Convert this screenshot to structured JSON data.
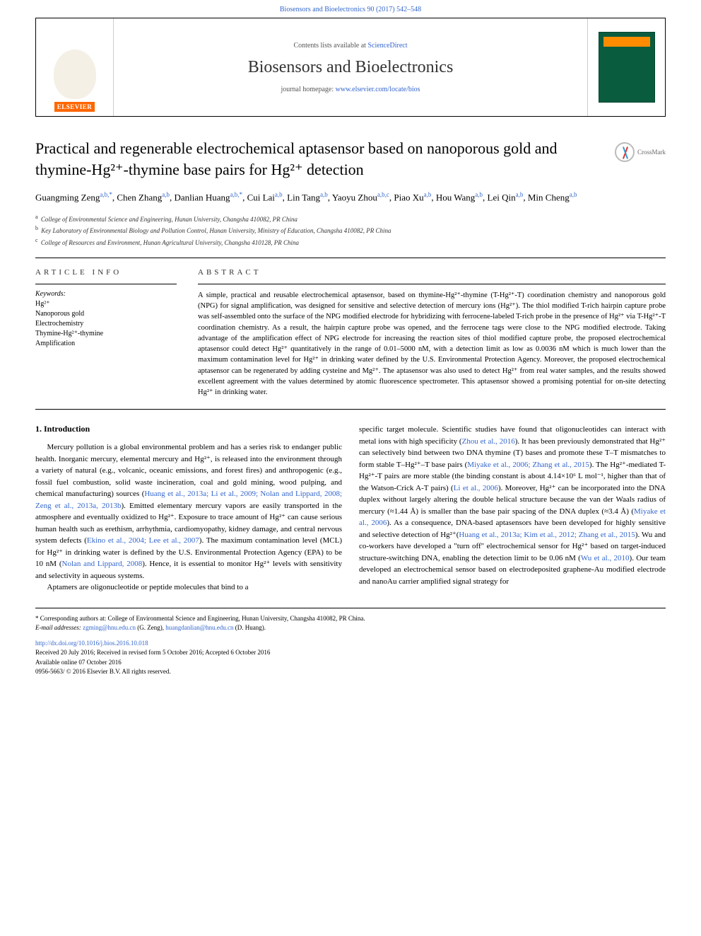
{
  "header": {
    "citation": "Biosensors and Bioelectronics 90 (2017) 542–548",
    "contents_prefix": "Contents lists available at ",
    "contents_link": "ScienceDirect",
    "journal_name": "Biosensors and Bioelectronics",
    "homepage_prefix": "journal homepage: ",
    "homepage_link": "www.elsevier.com/locate/bios",
    "publisher_logo": "ELSEVIER",
    "crossmark": "CrossMark"
  },
  "article": {
    "title_html": "Practical and regenerable electrochemical aptasensor based on nanoporous gold and thymine-Hg²⁺-thymine base pairs for Hg²⁺ detection",
    "authors_html": "Guangming Zeng<sup class=\"aff\">a,b,*</sup>, Chen Zhang<sup class=\"aff\">a,b</sup>, Danlian Huang<sup class=\"aff\">a,b,*</sup>, Cui Lai<sup class=\"aff\">a,b</sup>, Lin Tang<sup class=\"aff\">a,b</sup>, Yaoyu Zhou<sup class=\"aff\">a,b,c</sup>, Piao Xu<sup class=\"aff\">a,b</sup>, Hou Wang<sup class=\"aff\">a,b</sup>, Lei Qin<sup class=\"aff\">a,b</sup>, Min Cheng<sup class=\"aff\">a,b</sup>",
    "affiliations": [
      {
        "label": "a",
        "text": "College of Environmental Science and Engineering, Hunan University, Changsha 410082, PR China"
      },
      {
        "label": "b",
        "text": "Key Laboratory of Environmental Biology and Pollution Control, Hunan University, Ministry of Education, Changsha 410082, PR China"
      },
      {
        "label": "c",
        "text": "College of Resources and Environment, Hunan Agricultural University, Changsha 410128, PR China"
      }
    ]
  },
  "info": {
    "heading": "ARTICLE INFO",
    "keywords_label": "Keywords:",
    "keywords": [
      "Hg²⁺",
      "Nanoporous gold",
      "Electrochemistry",
      "Thymine-Hg²⁺-thymine",
      "Amplification"
    ]
  },
  "abstract": {
    "heading": "ABSTRACT",
    "text": "A simple, practical and reusable electrochemical aptasensor, based on thymine-Hg²⁺-thymine (T-Hg²⁺-T) coordination chemistry and nanoporous gold (NPG) for signal amplification, was designed for sensitive and selective detection of mercury ions (Hg²⁺). The thiol modified T-rich hairpin capture probe was self-assembled onto the surface of the NPG modified electrode for hybridizing with ferrocene-labeled T-rich probe in the presence of Hg²⁺ via T-Hg²⁺-T coordination chemistry. As a result, the hairpin capture probe was opened, and the ferrocene tags were close to the NPG modified electrode. Taking advantage of the amplification effect of NPG electrode for increasing the reaction sites of thiol modified capture probe, the proposed electrochemical aptasensor could detect Hg²⁺ quantitatively in the range of 0.01–5000 nM, with a detection limit as low as 0.0036 nM which is much lower than the maximum contamination level for Hg²⁺ in drinking water defined by the U.S. Environmental Protection Agency. Moreover, the proposed electrochemical aptasensor can be regenerated by adding cysteine and Mg²⁺. The aptasensor was also used to detect Hg²⁺ from real water samples, and the results showed excellent agreement with the values determined by atomic fluorescence spectrometer. This aptasensor showed a promising potential for on-site detecting Hg²⁺ in drinking water."
  },
  "body": {
    "heading": "1. Introduction",
    "col1_html": "<p>Mercury pollution is a global environmental problem and has a series risk to endanger public health. Inorganic mercury, elemental mercury and Hg²⁺, is released into the environment through a variety of natural (e.g., volcanic, oceanic emissions, and forest fires) and anthropogenic (e.g., fossil fuel combustion, solid waste incineration, coal and gold mining, wood pulping, and chemical manufacturing) sources (<span class=\"cite\">Huang et al., 2013a; Li et al., 2009; Nolan and Lippard, 2008; Zeng et al., 2013a, 2013b</span>). Emitted elementary mercury vapors are easily transported in the atmosphere and eventually oxidized to Hg²⁺. Exposure to trace amount of Hg²⁺ can cause serious human health such as erethism, arrhythmia, cardiomyopathy, kidney damage, and central nervous system defects (<span class=\"cite\">Ekino et al., 2004; Lee et al., 2007</span>). The maximum contamination level (MCL) for Hg²⁺ in drinking water is defined by the U.S. Environmental Protection Agency (EPA) to be 10 nM (<span class=\"cite\">Nolan and Lippard, 2008</span>). Hence, it is essential to monitor Hg²⁺ levels with sensitivity and selectivity in aqueous systems.</p><p>Aptamers are oligonucleotide or peptide molecules that bind to a</p>",
    "col2_html": "<p style=\"text-indent:0\">specific target molecule. Scientific studies have found that oligonucleotides can interact with metal ions with high specificity (<span class=\"cite\">Zhou et al., 2016</span>). It has been previously demonstrated that Hg²⁺ can selectively bind between two DNA thymine (T) bases and promote these T–T mismatches to form stable T–Hg²⁺–T base pairs (<span class=\"cite\">Miyake et al., 2006; Zhang et al., 2015</span>). The Hg²⁺-mediated T-Hg²⁺-T pairs are more stable (the binding constant is about 4.14×10⁶ L mol⁻¹, higher than that of the Watson-Crick A-T pairs) (<span class=\"cite\">Li et al., 2006</span>). Moreover, Hg²⁺ can be incorporated into the DNA duplex without largely altering the double helical structure because the van der Waals radius of mercury (≈1.44 Å) is smaller than the base pair spacing of the DNA duplex (≈3.4 Å) (<span class=\"cite\">Miyake et al., 2006</span>). As a consequence, DNA-based aptasensors have been developed for highly sensitive and selective detection of Hg²⁺(<span class=\"cite\">Huang et al., 2013a; Kim et al., 2012; Zhang et al., 2015</span>). Wu and co-workers have developed a \"turn off\" electrochemical sensor for Hg²⁺ based on target-induced structure-switching DNA, enabling the detection limit to be 0.06 nM (<span class=\"cite\">Wu et al., 2010</span>). Our team developed an electrochemical sensor based on electrodeposited graphene-Au modified electrode and nanoAu carrier amplified signal strategy for</p>"
  },
  "footer": {
    "corr": "* Corresponding authors at: College of Environmental Science and Engineering, Hunan University, Changsha 410082, PR China.",
    "emails_label": "E-mail addresses: ",
    "email1": "zgming@hnu.edu.cn",
    "email1_name": " (G. Zeng), ",
    "email2": "huangdanlian@hnu.edu.cn",
    "email2_name": " (D. Huang).",
    "doi": "http://dx.doi.org/10.1016/j.bios.2016.10.018",
    "received": "Received 20 July 2016; Received in revised form 5 October 2016; Accepted 6 October 2016",
    "available": "Available online 07 October 2016",
    "copyright": "0956-5663/ © 2016 Elsevier B.V. All rights reserved."
  }
}
